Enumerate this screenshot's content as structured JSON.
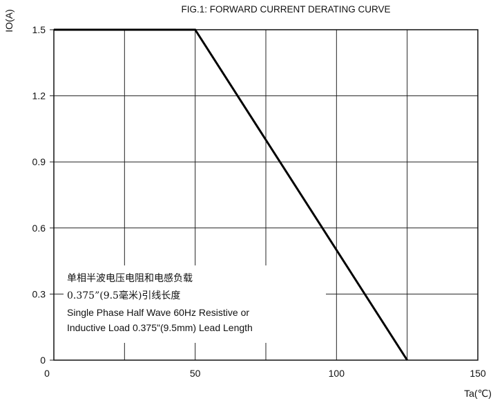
{
  "chart_data": {
    "type": "line",
    "title": "FIG.1: FORWARD CURRENT  DERATING CURVE",
    "ylabel": "IO(A)",
    "xlabel": "Ta(℃)",
    "xlim": [
      0,
      150
    ],
    "ylim": [
      0,
      1.5
    ],
    "x_ticks": [
      0,
      50,
      100,
      150
    ],
    "y_ticks": [
      0,
      0.3,
      0.6,
      0.9,
      1.2,
      1.5
    ],
    "x_tick_labels": [
      "0",
      "50",
      "100",
      "150"
    ],
    "y_tick_labels": [
      "0",
      "0.3",
      "0.6",
      "0.9",
      "1.2",
      "1.5"
    ],
    "x_grid": [
      0,
      25,
      50,
      75,
      100,
      125,
      150
    ],
    "y_grid": [
      0,
      0.3,
      0.6,
      0.9,
      1.2,
      1.5
    ],
    "grid": true,
    "series": [
      {
        "x": [
          0,
          50,
          125
        ],
        "y": [
          1.5,
          1.5,
          0
        ]
      }
    ],
    "annotations": [
      "单相半波电压电阻和电感负载",
      "0.375”(9.5毫米)引线长度",
      "Single Phase Half Wave 60Hz Resistive or",
      "Inductive Load 0.375\"(9.5mm) Lead Length"
    ]
  }
}
